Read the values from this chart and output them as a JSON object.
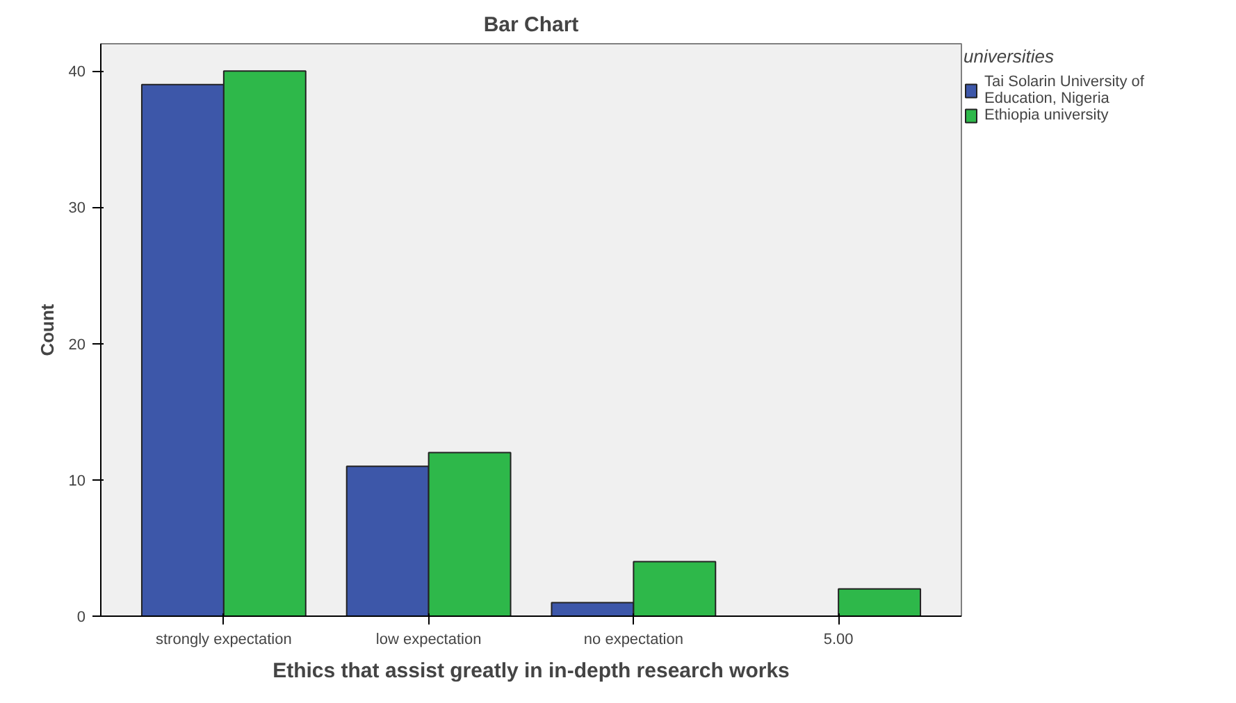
{
  "chart_data": {
    "type": "bar",
    "title": "Bar Chart",
    "xlabel": "Ethics that assist greatly in in-depth research works",
    "ylabel": "Count",
    "legend_title": "universities",
    "categories": [
      "strongly expectation",
      "low expectation",
      "no expectation",
      "5.00"
    ],
    "series": [
      {
        "name": "Tai Solarin University of Education, Nigeria",
        "color": "#3d57a9",
        "values": [
          39,
          11,
          1,
          null
        ]
      },
      {
        "name": "Ethiopia university",
        "color": "#2eb84a",
        "values": [
          40,
          12,
          4,
          2
        ]
      }
    ],
    "ylim": [
      0,
      42
    ],
    "yticks": [
      0,
      10,
      20,
      30,
      40
    ],
    "grid": false,
    "legend": "right"
  }
}
